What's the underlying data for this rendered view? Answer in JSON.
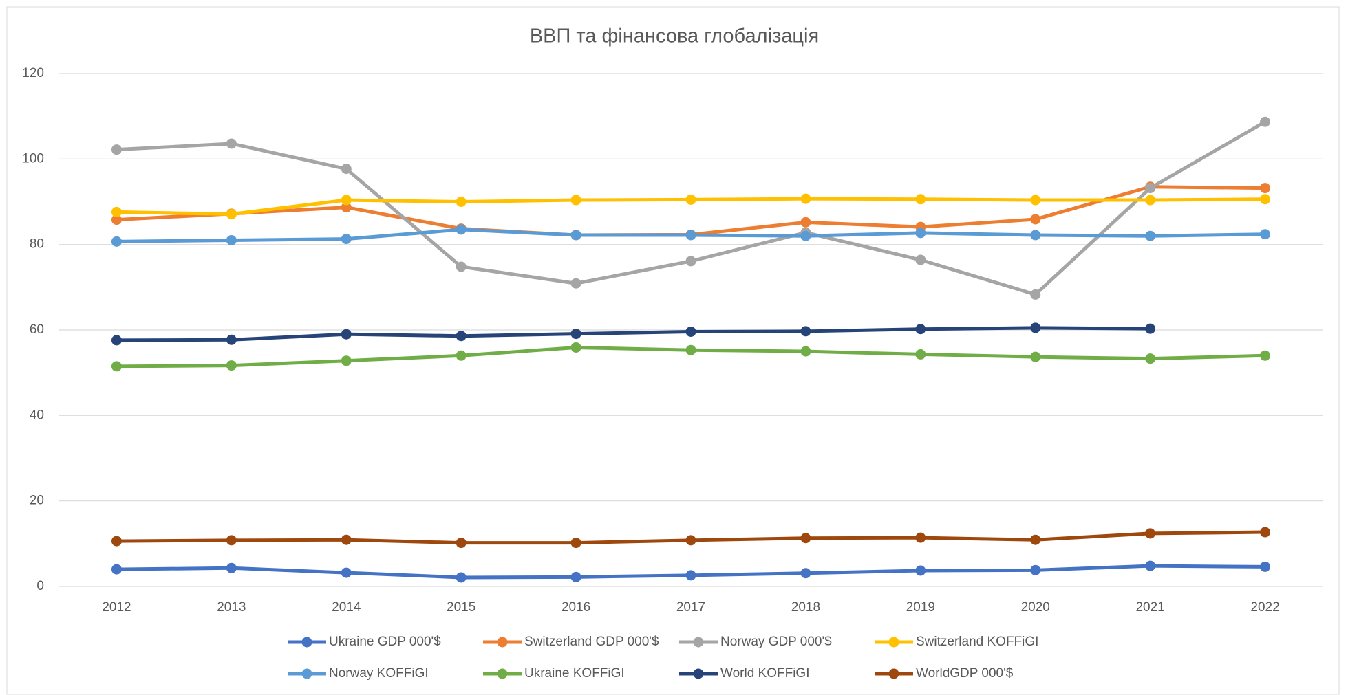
{
  "chart_data": {
    "type": "line",
    "title": "ВВП та фінансова глобалізація",
    "categories": [
      "2012",
      "2013",
      "2014",
      "2015",
      "2016",
      "2017",
      "2018",
      "2019",
      "2020",
      "2021",
      "2022"
    ],
    "series": [
      {
        "name": "Ukraine GDP 000'$",
        "color": "#4472c4",
        "values": [
          4.0,
          4.3,
          3.2,
          2.1,
          2.2,
          2.6,
          3.1,
          3.7,
          3.8,
          4.8,
          4.6
        ]
      },
      {
        "name": "Switzerland GDP 000'$",
        "color": "#ed7d31",
        "values": [
          85.8,
          87.2,
          88.7,
          83.7,
          82.2,
          82.3,
          85.2,
          84.1,
          85.9,
          93.5,
          93.2
        ]
      },
      {
        "name": "Norway GDP 000'$",
        "color": "#a5a5a5",
        "values": [
          102.2,
          103.6,
          97.7,
          74.8,
          70.9,
          76.1,
          82.8,
          76.4,
          68.3,
          93.2,
          108.7
        ]
      },
      {
        "name": "Switzerland KOFFiGI",
        "color": "#ffc000",
        "values": [
          87.6,
          87.1,
          90.4,
          90.0,
          90.4,
          90.5,
          90.7,
          90.6,
          90.4,
          90.4,
          90.6
        ]
      },
      {
        "name": "Norway KOFFiGI",
        "color": "#5b9bd5",
        "values": [
          80.7,
          81.0,
          81.3,
          83.5,
          82.2,
          82.2,
          82.0,
          82.7,
          82.2,
          82.0,
          82.4
        ]
      },
      {
        "name": "Ukraine KOFFiGI",
        "color": "#70ad47",
        "values": [
          51.5,
          51.7,
          52.8,
          54.0,
          55.9,
          55.3,
          55.0,
          54.3,
          53.7,
          53.3,
          54.0
        ]
      },
      {
        "name": "World KOFFiGI",
        "color": "#264478",
        "values": [
          57.6,
          57.7,
          59.0,
          58.6,
          59.1,
          59.6,
          59.7,
          60.2,
          60.5,
          60.3,
          null
        ]
      },
      {
        "name": "WorldGDP 000'$",
        "color": "#9e480e",
        "values": [
          10.6,
          10.8,
          10.9,
          10.2,
          10.2,
          10.8,
          11.3,
          11.4,
          10.9,
          12.4,
          12.7
        ]
      }
    ],
    "ylim": [
      0,
      120
    ],
    "yticks": [
      0,
      20,
      40,
      60,
      80,
      100,
      120
    ],
    "grid": true
  }
}
